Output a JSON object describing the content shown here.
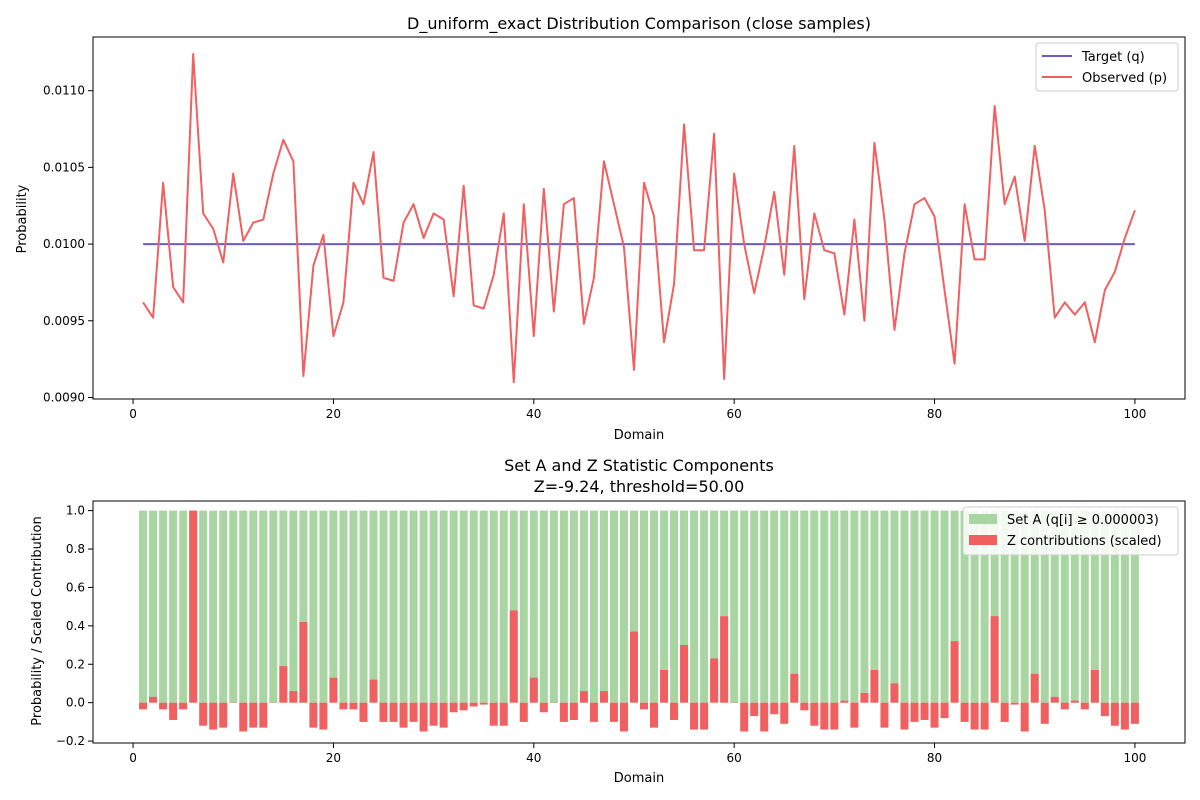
{
  "chart_data": [
    {
      "type": "line",
      "title": "D_uniform_exact Distribution Comparison (close samples)",
      "xlabel": "Domain",
      "ylabel": "Probability",
      "xlim": [
        -4,
        105
      ],
      "ylim": [
        0.00899,
        0.01135
      ],
      "xticks": [
        0,
        20,
        40,
        60,
        80,
        100
      ],
      "xtick_labels": [
        "0",
        "20",
        "40",
        "60",
        "80",
        "100"
      ],
      "yticks": [
        0.009,
        0.0095,
        0.01,
        0.0105,
        0.011
      ],
      "ytick_labels": [
        "0.0090",
        "0.0095",
        "0.0100",
        "0.0105",
        "0.0110"
      ],
      "grid": false,
      "legend_position": "top-right",
      "x": [
        1,
        2,
        3,
        4,
        5,
        6,
        7,
        8,
        9,
        10,
        11,
        12,
        13,
        14,
        15,
        16,
        17,
        18,
        19,
        20,
        21,
        22,
        23,
        24,
        25,
        26,
        27,
        28,
        29,
        30,
        31,
        32,
        33,
        34,
        35,
        36,
        37,
        38,
        39,
        40,
        41,
        42,
        43,
        44,
        45,
        46,
        47,
        48,
        49,
        50,
        51,
        52,
        53,
        54,
        55,
        56,
        57,
        58,
        59,
        60,
        61,
        62,
        63,
        64,
        65,
        66,
        67,
        68,
        69,
        70,
        71,
        72,
        73,
        74,
        75,
        76,
        77,
        78,
        79,
        80,
        81,
        82,
        83,
        84,
        85,
        86,
        87,
        88,
        89,
        90,
        91,
        92,
        93,
        94,
        95,
        96,
        97,
        98,
        99,
        100
      ],
      "series": [
        {
          "name": "Target (q)",
          "color": "#6a5acd",
          "values": [
            0.01,
            0.01,
            0.01,
            0.01,
            0.01,
            0.01,
            0.01,
            0.01,
            0.01,
            0.01,
            0.01,
            0.01,
            0.01,
            0.01,
            0.01,
            0.01,
            0.01,
            0.01,
            0.01,
            0.01,
            0.01,
            0.01,
            0.01,
            0.01,
            0.01,
            0.01,
            0.01,
            0.01,
            0.01,
            0.01,
            0.01,
            0.01,
            0.01,
            0.01,
            0.01,
            0.01,
            0.01,
            0.01,
            0.01,
            0.01,
            0.01,
            0.01,
            0.01,
            0.01,
            0.01,
            0.01,
            0.01,
            0.01,
            0.01,
            0.01,
            0.01,
            0.01,
            0.01,
            0.01,
            0.01,
            0.01,
            0.01,
            0.01,
            0.01,
            0.01,
            0.01,
            0.01,
            0.01,
            0.01,
            0.01,
            0.01,
            0.01,
            0.01,
            0.01,
            0.01,
            0.01,
            0.01,
            0.01,
            0.01,
            0.01,
            0.01,
            0.01,
            0.01,
            0.01,
            0.01,
            0.01,
            0.01,
            0.01,
            0.01,
            0.01,
            0.01,
            0.01,
            0.01,
            0.01,
            0.01,
            0.01,
            0.01,
            0.01,
            0.01,
            0.01,
            0.01,
            0.01,
            0.01,
            0.01,
            0.01
          ]
        },
        {
          "name": "Observed (p)",
          "color": "#f06060",
          "values": [
            0.00962,
            0.00952,
            0.0104,
            0.00972,
            0.00962,
            0.01124,
            0.0102,
            0.0101,
            0.00988,
            0.01046,
            0.01002,
            0.01014,
            0.01016,
            0.01046,
            0.01068,
            0.01054,
            0.00914,
            0.00986,
            0.01006,
            0.0094,
            0.00962,
            0.0104,
            0.01026,
            0.0106,
            0.00978,
            0.00976,
            0.01014,
            0.01026,
            0.01004,
            0.0102,
            0.01016,
            0.00966,
            0.01038,
            0.0096,
            0.00958,
            0.0098,
            0.0102,
            0.0091,
            0.01026,
            0.0094,
            0.01036,
            0.00956,
            0.01026,
            0.0103,
            0.00948,
            0.00978,
            0.01054,
            0.01026,
            0.00998,
            0.00918,
            0.0104,
            0.01018,
            0.00936,
            0.00974,
            0.01078,
            0.00996,
            0.00996,
            0.01072,
            0.00912,
            0.01046,
            0.01,
            0.00968,
            0.00998,
            0.01034,
            0.0098,
            0.01064,
            0.00964,
            0.0102,
            0.00996,
            0.00994,
            0.00954,
            0.01016,
            0.0095,
            0.01066,
            0.01016,
            0.00944,
            0.00994,
            0.01026,
            0.0103,
            0.01018,
            0.0097,
            0.00922,
            0.01026,
            0.0099,
            0.0099,
            0.0109,
            0.01026,
            0.01044,
            0.01002,
            0.01064,
            0.01022,
            0.00952,
            0.00962,
            0.00954,
            0.00962,
            0.00936,
            0.0097,
            0.00982,
            0.01004,
            0.01022
          ]
        }
      ]
    },
    {
      "type": "bar",
      "title": "Set A and Z Statistic Components",
      "subtitle": "Z=-9.24, threshold=50.00",
      "xlabel": "Domain",
      "ylabel": "Probability / Scaled Contribution",
      "xlim": [
        -4,
        105
      ],
      "ylim": [
        -0.21,
        1.05
      ],
      "xticks": [
        0,
        20,
        40,
        60,
        80,
        100
      ],
      "xtick_labels": [
        "0",
        "20",
        "40",
        "60",
        "80",
        "100"
      ],
      "yticks": [
        -0.2,
        0.0,
        0.2,
        0.4,
        0.6,
        0.8,
        1.0
      ],
      "ytick_labels": [
        "−0.2",
        "0.0",
        "0.2",
        "0.4",
        "0.6",
        "0.8",
        "1.0"
      ],
      "grid": false,
      "legend_position": "top-right",
      "x": [
        1,
        2,
        3,
        4,
        5,
        6,
        7,
        8,
        9,
        10,
        11,
        12,
        13,
        14,
        15,
        16,
        17,
        18,
        19,
        20,
        21,
        22,
        23,
        24,
        25,
        26,
        27,
        28,
        29,
        30,
        31,
        32,
        33,
        34,
        35,
        36,
        37,
        38,
        39,
        40,
        41,
        42,
        43,
        44,
        45,
        46,
        47,
        48,
        49,
        50,
        51,
        52,
        53,
        54,
        55,
        56,
        57,
        58,
        59,
        60,
        61,
        62,
        63,
        64,
        65,
        66,
        67,
        68,
        69,
        70,
        71,
        72,
        73,
        74,
        75,
        76,
        77,
        78,
        79,
        80,
        81,
        82,
        83,
        84,
        85,
        86,
        87,
        88,
        89,
        90,
        91,
        92,
        93,
        94,
        95,
        96,
        97,
        98,
        99,
        100
      ],
      "series": [
        {
          "name": "Set A (q[i] ≥ 0.000003)",
          "color": "#a8d5a2",
          "values": [
            1,
            1,
            1,
            1,
            1,
            1,
            1,
            1,
            1,
            1,
            1,
            1,
            1,
            1,
            1,
            1,
            1,
            1,
            1,
            1,
            1,
            1,
            1,
            1,
            1,
            1,
            1,
            1,
            1,
            1,
            1,
            1,
            1,
            1,
            1,
            1,
            1,
            1,
            1,
            1,
            1,
            1,
            1,
            1,
            1,
            1,
            1,
            1,
            1,
            1,
            1,
            1,
            1,
            1,
            1,
            1,
            1,
            1,
            1,
            1,
            1,
            1,
            1,
            1,
            1,
            1,
            1,
            1,
            1,
            1,
            1,
            1,
            1,
            1,
            1,
            1,
            1,
            1,
            1,
            1,
            1,
            1,
            1,
            1,
            1,
            1,
            1,
            1,
            1,
            1,
            1,
            1,
            1,
            1,
            1,
            1,
            1,
            1,
            1,
            1
          ]
        },
        {
          "name": "Z contributions (scaled)",
          "color": "#f06060",
          "values": [
            -0.035,
            0.03,
            -0.035,
            -0.09,
            -0.035,
            1.0,
            -0.12,
            -0.14,
            -0.13,
            0.0,
            -0.15,
            -0.13,
            -0.13,
            0.0,
            0.19,
            0.06,
            0.42,
            -0.13,
            -0.14,
            0.13,
            -0.035,
            -0.035,
            -0.1,
            0.12,
            -0.1,
            -0.1,
            -0.13,
            -0.1,
            -0.15,
            -0.12,
            -0.13,
            -0.05,
            -0.04,
            -0.02,
            -0.01,
            -0.12,
            -0.12,
            0.48,
            -0.1,
            0.13,
            -0.05,
            0.0,
            -0.1,
            -0.09,
            0.06,
            -0.1,
            0.06,
            -0.1,
            -0.15,
            0.37,
            -0.035,
            -0.13,
            0.17,
            -0.09,
            0.3,
            -0.14,
            -0.14,
            0.23,
            0.45,
            0.0,
            -0.15,
            -0.07,
            -0.15,
            -0.06,
            -0.11,
            0.15,
            -0.04,
            -0.12,
            -0.14,
            -0.14,
            0.01,
            -0.13,
            0.05,
            0.17,
            -0.13,
            0.1,
            -0.14,
            -0.1,
            -0.09,
            -0.13,
            -0.08,
            0.32,
            -0.1,
            -0.14,
            -0.14,
            0.45,
            -0.1,
            -0.01,
            -0.15,
            0.15,
            -0.11,
            0.03,
            -0.035,
            0.01,
            -0.035,
            0.17,
            -0.07,
            -0.12,
            -0.14,
            -0.11
          ]
        }
      ]
    }
  ]
}
